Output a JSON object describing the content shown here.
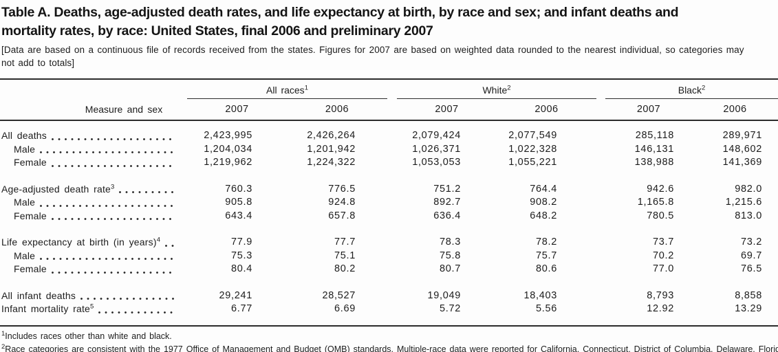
{
  "header": {
    "title_lines": [
      "Table A. Deaths, age-adjusted death rates, and life expectancy at birth, by race and sex; and infant deaths and",
      "mortality rates, by race: United States, final 2006 and preliminary 2007"
    ],
    "note_lines": [
      "[Data are based on a continuous file of records received from the states. Figures for 2007 are based on weighted data rounded to the nearest individual, so categories may",
      "not add to totals]"
    ]
  },
  "table": {
    "stub_header": "Measure and sex",
    "groups": [
      {
        "label": "All races",
        "sup": "1"
      },
      {
        "label": "White",
        "sup": "2"
      },
      {
        "label": "Black",
        "sup": "2"
      }
    ],
    "year_headers": [
      "2007",
      "2006",
      "2007",
      "2006",
      "2007",
      "2006"
    ],
    "rows": [
      {
        "label": "All deaths",
        "sup": "",
        "indent": false,
        "values": [
          "2,423,995",
          "2,426,264",
          "2,079,424",
          "2,077,549",
          "285,118",
          "289,971"
        ]
      },
      {
        "label": "Male",
        "sup": "",
        "indent": true,
        "values": [
          "1,204,034",
          "1,201,942",
          "1,026,371",
          "1,022,328",
          "146,131",
          "148,602"
        ]
      },
      {
        "label": "Female",
        "sup": "",
        "indent": true,
        "values": [
          "1,219,962",
          "1,224,322",
          "1,053,053",
          "1,055,221",
          "138,988",
          "141,369"
        ]
      },
      {
        "spacer": true
      },
      {
        "label": "Age-adjusted death rate",
        "sup": "3",
        "indent": false,
        "values": [
          "760.3",
          "776.5",
          "751.2",
          "764.4",
          "942.6",
          "982.0"
        ]
      },
      {
        "label": "Male",
        "sup": "",
        "indent": true,
        "values": [
          "905.8",
          "924.8",
          "892.7",
          "908.2",
          "1,165.8",
          "1,215.6"
        ]
      },
      {
        "label": "Female",
        "sup": "",
        "indent": true,
        "values": [
          "643.4",
          "657.8",
          "636.4",
          "648.2",
          "780.5",
          "813.0"
        ]
      },
      {
        "spacer": true
      },
      {
        "label": "Life expectancy at birth (in years)",
        "sup": "4",
        "indent": false,
        "values": [
          "77.9",
          "77.7",
          "78.3",
          "78.2",
          "73.7",
          "73.2"
        ]
      },
      {
        "label": "Male",
        "sup": "",
        "indent": true,
        "values": [
          "75.3",
          "75.1",
          "75.8",
          "75.7",
          "70.2",
          "69.7"
        ]
      },
      {
        "label": "Female",
        "sup": "",
        "indent": true,
        "values": [
          "80.4",
          "80.2",
          "80.7",
          "80.6",
          "77.0",
          "76.5"
        ]
      },
      {
        "spacer": true
      },
      {
        "label": "All infant deaths",
        "sup": "",
        "indent": false,
        "values": [
          "29,241",
          "28,527",
          "19,049",
          "18,403",
          "8,793",
          "8,858"
        ]
      },
      {
        "label": "Infant mortality rate",
        "sup": "5",
        "indent": false,
        "values": [
          "6.77",
          "6.69",
          "5.72",
          "5.56",
          "12.92",
          "13.29"
        ]
      }
    ]
  },
  "footnotes": [
    {
      "sup": "1",
      "text": "Includes races other than white and black."
    },
    {
      "sup": "2",
      "text": "Race categories are consistent with the 1977 Office of Management and Budget (OMB) standards. Multiple-race data were reported for California, Connecticut, District of Columbia, Delaware, Florid"
    }
  ],
  "colors": {
    "text": "#1c1c1c",
    "rule": "#2b2b2b",
    "background": "#fdfdfd"
  }
}
